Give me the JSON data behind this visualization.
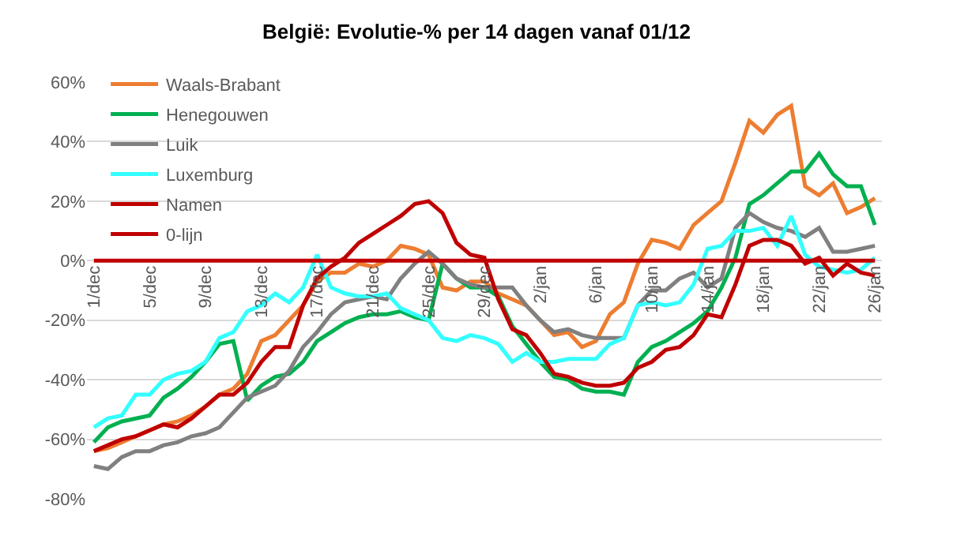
{
  "chart_data": {
    "type": "line",
    "title": "België: Evolutie-% per 14 dagen vanaf 01/12",
    "categories": [
      "1/dec",
      null,
      null,
      null,
      "5/dec",
      null,
      null,
      null,
      "9/dec",
      null,
      null,
      null,
      "13/dec",
      null,
      null,
      null,
      "17/dec",
      null,
      null,
      null,
      "21/dec",
      null,
      null,
      null,
      "25/dec",
      null,
      null,
      null,
      "29/dec",
      null,
      null,
      null,
      "2/jan",
      null,
      null,
      null,
      "6/jan",
      null,
      null,
      null,
      "10/jan",
      null,
      null,
      null,
      "14/jan",
      null,
      null,
      null,
      "18/jan",
      null,
      null,
      null,
      "22/jan",
      null,
      null,
      null,
      "26/jan"
    ],
    "series": [
      {
        "name": "Waals-Brabant",
        "color": "#ed7d31",
        "values": [
          -64,
          -63,
          -61,
          -59,
          -57,
          -55,
          -54,
          -52,
          -49,
          -45,
          -43,
          -38,
          -27,
          -25,
          -20,
          -15,
          -7,
          -4,
          -4,
          -1,
          -2,
          0,
          5,
          4,
          2,
          -9,
          -10,
          -7,
          -7,
          -11,
          -13,
          -15,
          -20,
          -25,
          -24,
          -29,
          -27,
          -18,
          -14,
          -1,
          7,
          6,
          4,
          12,
          16,
          20,
          33,
          47,
          43,
          49,
          52,
          25,
          22,
          26,
          16,
          18,
          21
        ]
      },
      {
        "name": "Henegouwen",
        "color": "#00b050",
        "values": [
          -61,
          -56,
          -54,
          -53,
          -52,
          -46,
          -43,
          -39,
          -34,
          -28,
          -27,
          -47,
          -42,
          -39,
          -38,
          -34,
          -27,
          -24,
          -21,
          -19,
          -18,
          -18,
          -17,
          -19,
          -20,
          -1,
          -6,
          -9,
          -9,
          -12,
          -22,
          -28,
          -34,
          -39,
          -40,
          -43,
          -44,
          -44,
          -45,
          -34,
          -29,
          -27,
          -24,
          -21,
          -17,
          -9,
          1,
          19,
          22,
          26,
          30,
          30,
          36,
          29,
          25,
          25,
          12
        ]
      },
      {
        "name": "Luik",
        "color": "#808080",
        "values": [
          -69,
          -70,
          -66,
          -64,
          -64,
          -62,
          -61,
          -59,
          -58,
          -56,
          -51,
          -46,
          -44,
          -42,
          -37,
          -29,
          -24,
          -18,
          -14,
          -13,
          -12,
          -13,
          -6,
          -1,
          3,
          -1,
          -6,
          -8,
          -9,
          -9,
          -9,
          -15,
          -20,
          -24,
          -23,
          -25,
          -26,
          -26,
          -26,
          -15,
          -10,
          -10,
          -6,
          -4,
          -9,
          -6,
          11,
          16,
          13,
          11,
          10,
          8,
          11,
          3,
          3,
          4,
          5
        ]
      },
      {
        "name": "Luxemburg",
        "color": "#33ffff",
        "values": [
          -56,
          -53,
          -52,
          -45,
          -45,
          -40,
          -38,
          -37,
          -34,
          -26,
          -24,
          -17,
          -15,
          -11,
          -14,
          -9,
          2,
          -9,
          -11,
          -12,
          -12,
          -11,
          -16,
          -18,
          -20,
          -26,
          -27,
          -25,
          -26,
          -28,
          -34,
          -31,
          -34,
          -34,
          -33,
          -33,
          -33,
          -28,
          -26,
          -15,
          -14,
          -15,
          -14,
          -8,
          4,
          5,
          10,
          10,
          11,
          5,
          15,
          2,
          -2,
          -3,
          -4,
          -3,
          1
        ]
      },
      {
        "name": "Namen",
        "color": "#c00000",
        "values": [
          -64,
          -62,
          -60,
          -59,
          -57,
          -55,
          -56,
          -53,
          -49,
          -45,
          -45,
          -41,
          -34,
          -29,
          -29,
          -15,
          -6,
          -2,
          1,
          6,
          9,
          12,
          15,
          19,
          20,
          16,
          6,
          2,
          1,
          -13,
          -23,
          -25,
          -31,
          -38,
          -39,
          -41,
          -42,
          -42,
          -41,
          -36,
          -34,
          -30,
          -29,
          -25,
          -18,
          -19,
          -8,
          5,
          7,
          7,
          5,
          -1,
          1,
          -5,
          -1,
          -4,
          -5
        ]
      },
      {
        "name": "0-lijn",
        "color": "#c00000",
        "values": [
          0,
          0,
          0,
          0,
          0,
          0,
          0,
          0,
          0,
          0,
          0,
          0,
          0,
          0,
          0,
          0,
          0,
          0,
          0,
          0,
          0,
          0,
          0,
          0,
          0,
          0,
          0,
          0,
          0,
          0,
          0,
          0,
          0,
          0,
          0,
          0,
          0,
          0,
          0,
          0,
          0,
          0,
          0,
          0,
          0,
          0,
          0,
          0,
          0,
          0,
          0,
          0,
          0,
          0,
          0,
          0,
          0
        ]
      }
    ],
    "ylim": [
      -80,
      60
    ],
    "yticks": [
      {
        "value": -80,
        "label": "-80%"
      },
      {
        "value": -60,
        "label": "-60%"
      },
      {
        "value": -40,
        "label": "-40%"
      },
      {
        "value": -20,
        "label": "-20%"
      },
      {
        "value": 0,
        "label": "0%"
      },
      {
        "value": 20,
        "label": "20%"
      },
      {
        "value": 40,
        "label": "40%"
      },
      {
        "value": 60,
        "label": "60%"
      }
    ],
    "grid": "y",
    "legend": "top left",
    "marker": "none",
    "line_style": "solid"
  }
}
